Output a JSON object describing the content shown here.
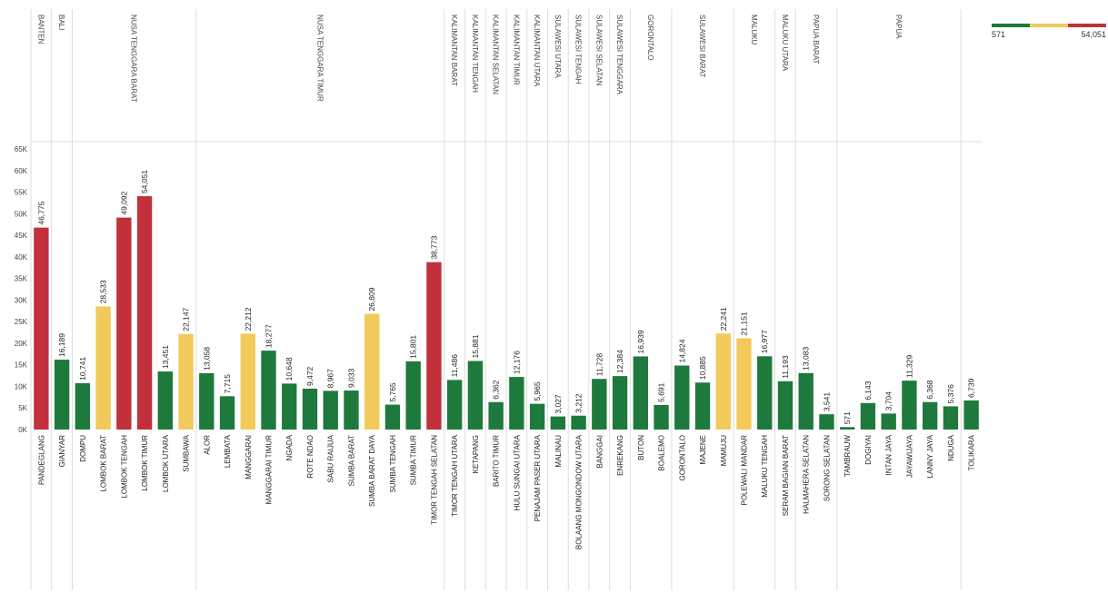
{
  "colors": {
    "green": "#1e7a3c",
    "yellow": "#f1ca5b",
    "red": "#c2303b",
    "axis_text": "#444444",
    "divider": "#dddddd"
  },
  "legend": {
    "min_label": "571",
    "max_label": "54,051"
  },
  "chart_data": {
    "type": "bar",
    "title": "",
    "xlabel": "",
    "ylabel": "",
    "ylim": [
      0,
      65000
    ],
    "y_ticks": [
      "0K",
      "5K",
      "10K",
      "15K",
      "20K",
      "25K",
      "30K",
      "35K",
      "40K",
      "45K",
      "50K",
      "55K",
      "60K",
      "65K"
    ],
    "grid": false,
    "legend_placement": "top-right",
    "color_scale": {
      "min": 571,
      "max": 54051,
      "low_color": "green",
      "mid_color": "yellow",
      "high_color": "red"
    },
    "provinces": [
      {
        "name": "BANTEN",
        "count": 1
      },
      {
        "name": "BALI",
        "count": 1
      },
      {
        "name": "NUSA TENGGARA BARAT",
        "count": 6
      },
      {
        "name": "NUSA TENGGARA TIMUR",
        "count": 12
      },
      {
        "name": "KALIMANTAN BARAT",
        "count": 1
      },
      {
        "name": "KALIMANTAN TENGAH",
        "count": 1
      },
      {
        "name": "KALIMANTAN SELATAN",
        "count": 1
      },
      {
        "name": "KALIMANTAN TIMUR",
        "count": 1
      },
      {
        "name": "KALIMANTAN UTARA",
        "count": 1
      },
      {
        "name": "SULAWESI UTARA",
        "count": 1
      },
      {
        "name": "SULAWESI TENGAH",
        "count": 1
      },
      {
        "name": "SULAWESI SELATAN",
        "count": 1
      },
      {
        "name": "SULAWESI TENGGARA",
        "count": 1
      },
      {
        "name": "GORONTALO",
        "count": 2
      },
      {
        "name": "SULAWESI BARAT",
        "count": 3
      },
      {
        "name": "MALUKU",
        "count": 2
      },
      {
        "name": "MALUKU UTARA",
        "count": 1
      },
      {
        "name": "PAPUA BARAT",
        "count": 2
      },
      {
        "name": "PAPUA",
        "count": 6
      }
    ],
    "bars": [
      {
        "category": "PANDEGLANG",
        "value": 46775,
        "label": "46,775",
        "color": "red"
      },
      {
        "category": "GIANYAR",
        "value": 16189,
        "label": "16,189",
        "color": "green"
      },
      {
        "category": "DOMPU",
        "value": 10741,
        "label": "10,741",
        "color": "green"
      },
      {
        "category": "LOMBOK BARAT",
        "value": 28533,
        "label": "28,533",
        "color": "yellow"
      },
      {
        "category": "LOMBOK TENGAH",
        "value": 49092,
        "label": "49,092",
        "color": "red"
      },
      {
        "category": "LOMBOK TIMUR",
        "value": 54051,
        "label": "54,051",
        "color": "red"
      },
      {
        "category": "LOMBOK UTARA",
        "value": 13451,
        "label": "13,451",
        "color": "green"
      },
      {
        "category": "SUMBAWA",
        "value": 22147,
        "label": "22,147",
        "color": "yellow"
      },
      {
        "category": "ALOR",
        "value": 13058,
        "label": "13,058",
        "color": "green"
      },
      {
        "category": "LEMBATA",
        "value": 7715,
        "label": "7,715",
        "color": "green"
      },
      {
        "category": "MANGGARAI",
        "value": 22212,
        "label": "22,212",
        "color": "yellow"
      },
      {
        "category": "MANGGARAI TIMUR",
        "value": 18277,
        "label": "18,277",
        "color": "green"
      },
      {
        "category": "NGADA",
        "value": 10648,
        "label": "10,648",
        "color": "green"
      },
      {
        "category": "ROTE NDAO",
        "value": 9472,
        "label": "9,472",
        "color": "green"
      },
      {
        "category": "SABU RAIJUA",
        "value": 8967,
        "label": "8,967",
        "color": "green"
      },
      {
        "category": "SUMBA BARAT",
        "value": 9033,
        "label": "9,033",
        "color": "green"
      },
      {
        "category": "SUMBA BARAT DAYA",
        "value": 26809,
        "label": "26,809",
        "color": "yellow"
      },
      {
        "category": "SUMBA TENGAH",
        "value": 5765,
        "label": "5,765",
        "color": "green"
      },
      {
        "category": "SUMBA TIMUR",
        "value": 15801,
        "label": "15,801",
        "color": "green"
      },
      {
        "category": "TIMOR TENGAH SELATAN",
        "value": 38773,
        "label": "38,773",
        "color": "red"
      },
      {
        "category": "TIMOR TENGAH UTARA",
        "value": 11486,
        "label": "11,486",
        "color": "green"
      },
      {
        "category": "KETAPANG",
        "value": 15881,
        "label": "15,881",
        "color": "green"
      },
      {
        "category": "BARITO TIMUR",
        "value": 6362,
        "label": "6,362",
        "color": "green"
      },
      {
        "category": "HULU SUNGAI UTARA",
        "value": 12176,
        "label": "12,176",
        "color": "green"
      },
      {
        "category": "PENAJAM PASER UTARA",
        "value": 5965,
        "label": "5,965",
        "color": "green"
      },
      {
        "category": "MALINAU",
        "value": 3027,
        "label": "3,027",
        "color": "green"
      },
      {
        "category": "BOLAANG MONGONDOW UTARA",
        "value": 3212,
        "label": "3,212",
        "color": "green"
      },
      {
        "category": "BANGGAI",
        "value": 11728,
        "label": "11,728",
        "color": "green"
      },
      {
        "category": "ENREKANG",
        "value": 12384,
        "label": "12,384",
        "color": "green"
      },
      {
        "category": "BUTON",
        "value": 16939,
        "label": "16,939",
        "color": "green"
      },
      {
        "category": "BOALEMO",
        "value": 5691,
        "label": "5,691",
        "color": "green"
      },
      {
        "category": "GORONTALO",
        "value": 14824,
        "label": "14,824",
        "color": "green"
      },
      {
        "category": "MAJENE",
        "value": 10885,
        "label": "10,885",
        "color": "green"
      },
      {
        "category": "MAMUJU",
        "value": 22241,
        "label": "22,241",
        "color": "yellow"
      },
      {
        "category": "POLEWALI MANDAR",
        "value": 21151,
        "label": "21,151",
        "color": "yellow"
      },
      {
        "category": "MALUKU TENGAH",
        "value": 16977,
        "label": "16,977",
        "color": "green"
      },
      {
        "category": "SERAM BAGIAN BARAT",
        "value": 11193,
        "label": "11,193",
        "color": "green"
      },
      {
        "category": "HALMAHERA SELATAN",
        "value": 13083,
        "label": "13,083",
        "color": "green"
      },
      {
        "category": "SORONG SELATAN",
        "value": 3541,
        "label": "3,541",
        "color": "green"
      },
      {
        "category": "TAMBRAUW",
        "value": 571,
        "label": "571",
        "color": "green"
      },
      {
        "category": "DOGIYAI",
        "value": 6143,
        "label": "6,143",
        "color": "green"
      },
      {
        "category": "INTAN JAYA",
        "value": 3704,
        "label": "3,704",
        "color": "green"
      },
      {
        "category": "JAYAWIJAYA",
        "value": 11329,
        "label": "11,329",
        "color": "green"
      },
      {
        "category": "LANNY JAYA",
        "value": 6368,
        "label": "6,368",
        "color": "green"
      },
      {
        "category": "NDUGA",
        "value": 5376,
        "label": "5,376",
        "color": "green"
      },
      {
        "category": "TOLIKARA",
        "value": 6739,
        "label": "6,739",
        "color": "green"
      }
    ]
  }
}
